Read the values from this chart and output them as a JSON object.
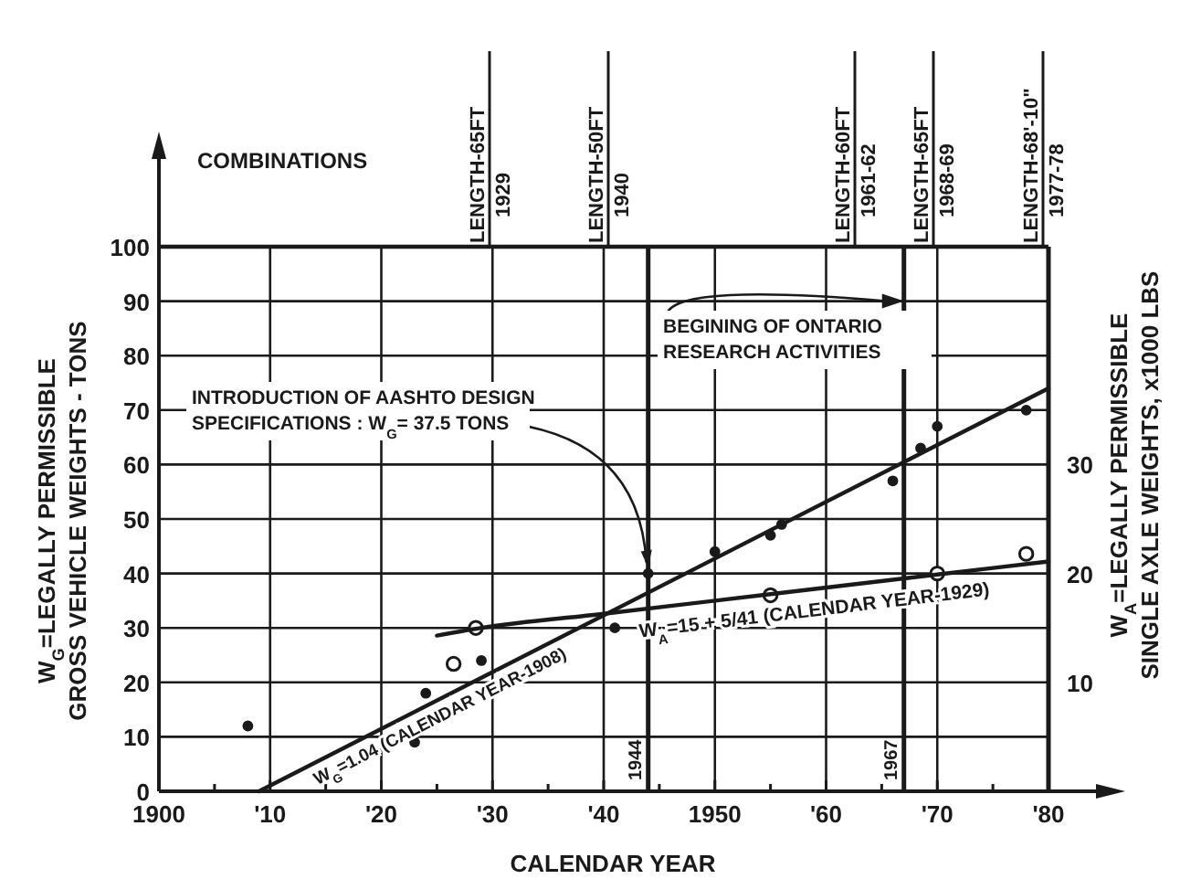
{
  "chart_data": {
    "type": "scatter",
    "xlabel": "CALENDAR YEAR",
    "ylabel": "W$_{G}$=LEGALLY PERMISSIBLE\nGROSS VEHICLE WEIGHTS - TONS",
    "y2label": "W$_{A}$=LEGALLY PERMISSIBLE\nSINGLE AXLE WEIGHTS, x1000 LBS",
    "subtitle": "COMBINATIONS",
    "xlim": [
      1900,
      1980
    ],
    "xticks": [
      {
        "value": 1900,
        "label": "1900"
      },
      {
        "value": 1905,
        "label": null
      },
      {
        "value": 1910,
        "label": "'10"
      },
      {
        "value": 1915,
        "label": null
      },
      {
        "value": 1920,
        "label": "'20"
      },
      {
        "value": 1925,
        "label": null
      },
      {
        "value": 1930,
        "label": "'30"
      },
      {
        "value": 1935,
        "label": null
      },
      {
        "value": 1940,
        "label": "'40"
      },
      {
        "value": 1945,
        "label": null
      },
      {
        "value": 1950,
        "label": "1950"
      },
      {
        "value": 1955,
        "label": null
      },
      {
        "value": 1960,
        "label": "'60"
      },
      {
        "value": 1965,
        "label": null
      },
      {
        "value": 1970,
        "label": "'70"
      },
      {
        "value": 1975,
        "label": null
      },
      {
        "value": 1980,
        "label": "'80"
      }
    ],
    "ylim": [
      0,
      100
    ],
    "yticks": [
      0,
      10,
      20,
      30,
      40,
      50,
      60,
      70,
      80,
      90,
      100
    ],
    "y2lim": [
      0,
      50
    ],
    "y2ticks": [
      10,
      20,
      30
    ],
    "grid": true,
    "series": [
      {
        "color": "#1a1a1a",
        "marker": "circle",
        "x": [
          1908,
          1923,
          1924,
          1929,
          1941,
          1944,
          1950,
          1955,
          1956,
          1966,
          1968.5,
          1970,
          1978
        ],
        "values": [
          12,
          9,
          18,
          24,
          30,
          40,
          44,
          47,
          49,
          57,
          63,
          67,
          70
        ]
      },
      {
        "type": "line",
        "name": "W$_{G}$=1.04 (CALENDAR YEAR-1908)",
        "color": "#1a1a1a",
        "x": [
          1909,
          1980
        ],
        "values": [
          0,
          74
        ]
      },
      {
        "type": "scatter",
        "axis": "y2",
        "color": "#1a1a1a",
        "marker": "circle",
        "x": [
          1926.5,
          1928.5,
          1955,
          1970,
          1978
        ],
        "values": [
          11.7,
          15,
          18,
          20,
          21.8
        ]
      },
      {
        "type": "line",
        "axis": "y2",
        "name": "W$_{A}$=15 + 5/41 (CALENDAR YEAR-1929)",
        "color": "#1a1a1a",
        "x": [
          1925,
          1929,
          1940,
          1955,
          1970,
          1980
        ],
        "values": [
          14.3,
          15,
          16.3,
          18.1,
          19.9,
          21.1
        ]
      }
    ],
    "ref_lines": [
      {
        "axis": "x",
        "value": 1944,
        "label": "1944"
      },
      {
        "axis": "x",
        "value": 1967,
        "label": "1967"
      }
    ],
    "annotations": [
      "LENGTH-65FT 1929",
      "LENGTH-50FT 1940",
      "LENGTH-60FT 1961-62",
      "LENGTH-65FT 1968-69",
      "LENGTH-68'-10\" 1977-78",
      {
        "text": "INTRODUCTION OF AASHTO DESIGN\nSPECIFICATIONS : W$_{G}$= 37.5 TONS",
        "x": 1944,
        "y": 40
      },
      {
        "text": "BEGINING OF ONTARIO\nRESEARCH ACTIVITIES",
        "x": 1967,
        "y": 90
      }
    ]
  }
}
